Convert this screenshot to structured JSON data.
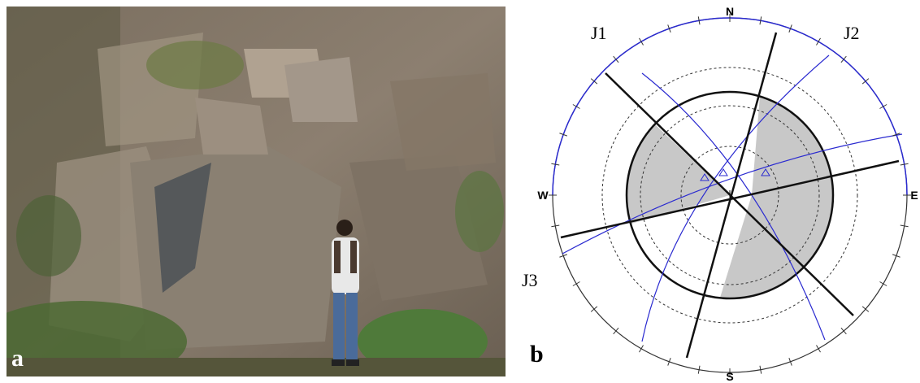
{
  "panels": [
    {
      "label": "a"
    },
    {
      "label": "b",
      "compass": {
        "north": "N",
        "east": "E",
        "south": "S",
        "west": "W"
      },
      "sets": [
        "J1",
        "J2",
        "J3"
      ]
    }
  ]
}
